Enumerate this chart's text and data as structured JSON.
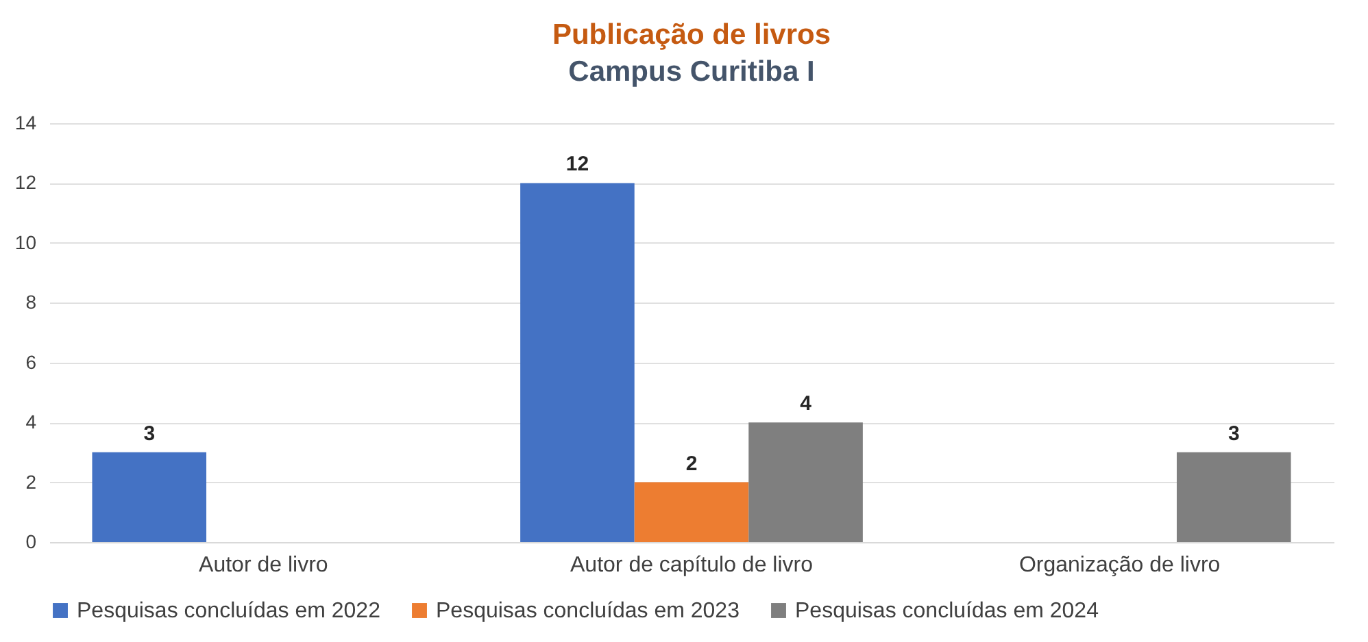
{
  "chart_data": {
    "type": "bar",
    "title": "Publicação de livros",
    "subtitle": "Campus Curitiba I",
    "categories": [
      "Autor de livro",
      "Autor de capítulo de livro",
      "Organização de livro"
    ],
    "series": [
      {
        "name": "Pesquisas concluídas em 2022",
        "color": "#4472c4",
        "values": [
          3,
          12,
          null
        ]
      },
      {
        "name": "Pesquisas concluídas em 2023",
        "color": "#ed7d31",
        "values": [
          null,
          2,
          null
        ]
      },
      {
        "name": "Pesquisas concluídas em 2024",
        "color": "#7f7f7f",
        "values": [
          null,
          4,
          3
        ]
      }
    ],
    "ylim": [
      0,
      14
    ],
    "yticks": [
      0,
      2,
      4,
      6,
      8,
      10,
      12,
      14
    ],
    "grid": "y",
    "legend": "bottom",
    "data_labels": true
  }
}
